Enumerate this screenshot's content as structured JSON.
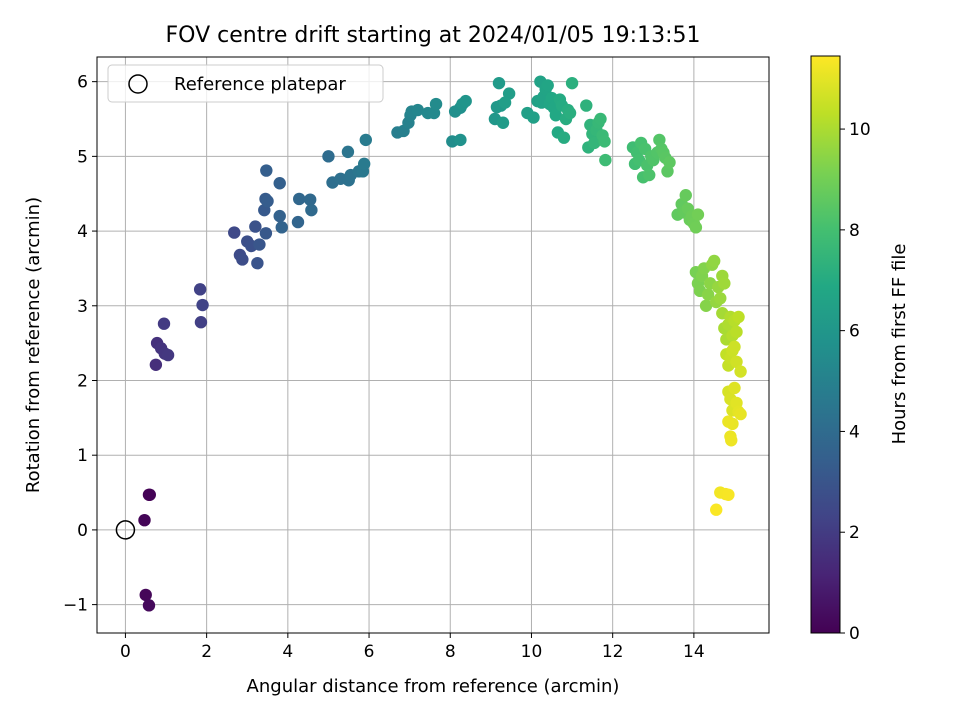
{
  "chart_data": {
    "type": "scatter",
    "title": "FOV centre drift starting at 2024/01/05 19:13:51",
    "xlabel": "Angular distance from reference (arcmin)",
    "ylabel": "Rotation from reference (arcmin)",
    "xlim": [
      -0.7,
      15.85
    ],
    "ylim": [
      -1.38,
      6.33
    ],
    "xticks": [
      0,
      2,
      4,
      6,
      8,
      10,
      12,
      14
    ],
    "yticks": [
      -1,
      0,
      1,
      2,
      3,
      4,
      5,
      6
    ],
    "grid": true,
    "legend": {
      "placement": "top-left",
      "entries": [
        "Reference platepar"
      ]
    },
    "reference_point": {
      "x": 0,
      "y": 0,
      "label": "Reference platepar"
    },
    "colorbar": {
      "label": "Hours from first FF file",
      "range": [
        0,
        11.45
      ],
      "ticks": [
        0,
        2,
        4,
        6,
        8,
        10
      ],
      "colormap": "viridis"
    },
    "series": [
      {
        "points": [
          [
            0.58,
            0.47,
            0.05
          ],
          [
            0.6,
            0.47,
            0.08
          ],
          [
            0.47,
            0.13,
            0.12
          ],
          [
            0.5,
            -0.87,
            0.18
          ],
          [
            0.58,
            -1.01,
            0.25
          ],
          [
            0.75,
            2.21,
            1.55
          ],
          [
            0.78,
            2.5,
            1.62
          ],
          [
            0.88,
            2.43,
            1.7
          ],
          [
            0.97,
            2.36,
            1.78
          ],
          [
            1.05,
            2.34,
            1.85
          ],
          [
            0.95,
            2.76,
            1.95
          ],
          [
            1.86,
            2.78,
            2.15
          ],
          [
            1.84,
            3.22,
            2.22
          ],
          [
            1.9,
            3.01,
            2.3
          ],
          [
            2.68,
            3.98,
            2.5
          ],
          [
            2.82,
            3.68,
            2.6
          ],
          [
            2.88,
            3.62,
            2.68
          ],
          [
            3.0,
            3.86,
            2.75
          ],
          [
            3.1,
            3.8,
            2.82
          ],
          [
            3.2,
            4.06,
            2.9
          ],
          [
            3.25,
            3.57,
            2.97
          ],
          [
            3.3,
            3.82,
            3.05
          ],
          [
            3.46,
            3.97,
            3.12
          ],
          [
            3.42,
            4.28,
            3.2
          ],
          [
            3.45,
            4.43,
            3.28
          ],
          [
            3.5,
            4.4,
            3.35
          ],
          [
            3.47,
            4.81,
            3.42
          ],
          [
            3.8,
            4.64,
            3.5
          ],
          [
            3.8,
            4.2,
            3.58
          ],
          [
            3.85,
            4.05,
            3.65
          ],
          [
            4.25,
            4.12,
            3.72
          ],
          [
            4.28,
            4.43,
            3.8
          ],
          [
            4.55,
            4.42,
            3.88
          ],
          [
            4.58,
            4.28,
            3.95
          ],
          [
            5.0,
            5.0,
            4.05
          ],
          [
            5.1,
            4.65,
            4.12
          ],
          [
            5.3,
            4.7,
            4.2
          ],
          [
            5.5,
            4.68,
            4.28
          ],
          [
            5.55,
            4.75,
            4.35
          ],
          [
            5.48,
            5.06,
            4.42
          ],
          [
            5.75,
            4.8,
            4.5
          ],
          [
            5.85,
            4.8,
            4.58
          ],
          [
            5.88,
            4.9,
            4.65
          ],
          [
            5.92,
            5.22,
            4.72
          ],
          [
            6.7,
            5.32,
            4.85
          ],
          [
            6.85,
            5.34,
            4.92
          ],
          [
            6.97,
            5.45,
            5.0
          ],
          [
            7.02,
            5.55,
            5.08
          ],
          [
            7.05,
            5.6,
            5.15
          ],
          [
            7.2,
            5.62,
            5.22
          ],
          [
            7.45,
            5.58,
            5.3
          ],
          [
            7.6,
            5.58,
            5.38
          ],
          [
            7.65,
            5.7,
            5.45
          ],
          [
            8.05,
            5.2,
            5.55
          ],
          [
            8.12,
            5.6,
            5.62
          ],
          [
            8.25,
            5.65,
            5.7
          ],
          [
            8.25,
            5.22,
            5.78
          ],
          [
            8.3,
            5.7,
            5.85
          ],
          [
            8.38,
            5.74,
            5.92
          ],
          [
            9.1,
            5.5,
            6.0
          ],
          [
            9.15,
            5.66,
            6.06
          ],
          [
            9.25,
            5.68,
            6.12
          ],
          [
            9.2,
            5.98,
            6.18
          ],
          [
            9.3,
            5.45,
            6.24
          ],
          [
            9.45,
            5.84,
            6.3
          ],
          [
            9.35,
            5.72,
            6.36
          ],
          [
            9.9,
            5.58,
            6.42
          ],
          [
            10.05,
            5.52,
            6.48
          ],
          [
            10.15,
            5.74,
            6.52
          ],
          [
            10.22,
            6.0,
            6.56
          ],
          [
            10.25,
            5.72,
            6.6
          ],
          [
            10.3,
            5.8,
            6.64
          ],
          [
            10.35,
            5.9,
            6.68
          ],
          [
            10.4,
            5.95,
            6.72
          ],
          [
            10.45,
            5.7,
            6.76
          ],
          [
            10.5,
            5.78,
            6.8
          ],
          [
            10.55,
            5.65,
            6.84
          ],
          [
            10.6,
            5.55,
            6.88
          ],
          [
            10.65,
            5.32,
            6.92
          ],
          [
            10.7,
            5.76,
            6.96
          ],
          [
            10.75,
            5.68,
            7.0
          ],
          [
            10.8,
            5.25,
            7.04
          ],
          [
            10.85,
            5.5,
            7.08
          ],
          [
            10.9,
            5.62,
            7.12
          ],
          [
            10.95,
            5.58,
            7.16
          ],
          [
            11.0,
            5.98,
            7.2
          ],
          [
            11.35,
            5.68,
            7.3
          ],
          [
            11.4,
            5.12,
            7.35
          ],
          [
            11.45,
            5.42,
            7.4
          ],
          [
            11.5,
            5.3,
            7.45
          ],
          [
            11.55,
            5.18,
            7.5
          ],
          [
            11.6,
            5.35,
            7.55
          ],
          [
            11.65,
            5.45,
            7.6
          ],
          [
            11.7,
            5.5,
            7.65
          ],
          [
            11.75,
            5.28,
            7.7
          ],
          [
            11.8,
            5.2,
            7.75
          ],
          [
            11.82,
            4.95,
            7.8
          ],
          [
            12.5,
            5.12,
            7.85
          ],
          [
            12.55,
            4.9,
            7.9
          ],
          [
            12.6,
            5.05,
            7.95
          ],
          [
            12.65,
            4.95,
            8.0
          ],
          [
            12.7,
            5.18,
            8.05
          ],
          [
            12.75,
            4.72,
            8.08
          ],
          [
            12.8,
            5.1,
            8.12
          ],
          [
            12.85,
            4.88,
            8.16
          ],
          [
            12.9,
            4.75,
            8.2
          ],
          [
            12.95,
            5.0,
            8.24
          ],
          [
            13.0,
            4.95,
            8.28
          ],
          [
            13.1,
            5.05,
            8.32
          ],
          [
            13.15,
            5.22,
            8.36
          ],
          [
            13.2,
            5.1,
            8.4
          ],
          [
            13.25,
            5.05,
            8.44
          ],
          [
            13.3,
            4.98,
            8.48
          ],
          [
            13.35,
            4.8,
            8.52
          ],
          [
            13.4,
            4.92,
            8.56
          ],
          [
            13.6,
            4.22,
            8.62
          ],
          [
            13.7,
            4.36,
            8.66
          ],
          [
            13.75,
            4.25,
            8.7
          ],
          [
            13.8,
            4.48,
            8.74
          ],
          [
            13.85,
            4.3,
            8.78
          ],
          [
            13.9,
            4.15,
            8.82
          ],
          [
            13.95,
            4.2,
            8.86
          ],
          [
            14.0,
            4.1,
            8.9
          ],
          [
            14.05,
            4.05,
            8.94
          ],
          [
            14.1,
            4.22,
            8.98
          ],
          [
            14.05,
            3.45,
            9.1
          ],
          [
            14.1,
            3.3,
            9.15
          ],
          [
            14.15,
            3.2,
            9.2
          ],
          [
            14.2,
            3.4,
            9.25
          ],
          [
            14.25,
            3.5,
            9.3
          ],
          [
            14.3,
            3.0,
            9.35
          ],
          [
            14.35,
            3.15,
            9.4
          ],
          [
            14.4,
            3.3,
            9.45
          ],
          [
            14.45,
            3.55,
            9.5
          ],
          [
            14.5,
            3.6,
            9.55
          ],
          [
            14.55,
            3.05,
            9.6
          ],
          [
            14.6,
            3.25,
            9.65
          ],
          [
            14.65,
            3.1,
            9.7
          ],
          [
            14.7,
            3.4,
            9.75
          ],
          [
            14.75,
            3.3,
            9.8
          ],
          [
            14.7,
            2.9,
            9.9
          ],
          [
            14.75,
            2.7,
            9.95
          ],
          [
            14.8,
            2.55,
            10.0
          ],
          [
            14.85,
            2.75,
            10.05
          ],
          [
            14.9,
            2.85,
            10.1
          ],
          [
            14.95,
            2.6,
            10.15
          ],
          [
            15.0,
            2.8,
            10.2
          ],
          [
            15.05,
            2.65,
            10.25
          ],
          [
            15.1,
            2.85,
            10.3
          ],
          [
            14.8,
            2.35,
            10.4
          ],
          [
            14.85,
            2.2,
            10.45
          ],
          [
            14.9,
            2.3,
            10.5
          ],
          [
            14.95,
            2.4,
            10.55
          ],
          [
            15.0,
            2.45,
            10.6
          ],
          [
            15.05,
            2.25,
            10.65
          ],
          [
            15.15,
            2.12,
            10.7
          ],
          [
            14.85,
            1.85,
            10.75
          ],
          [
            14.9,
            1.75,
            10.8
          ],
          [
            14.95,
            1.6,
            10.85
          ],
          [
            15.0,
            1.9,
            10.9
          ],
          [
            15.05,
            1.7,
            10.95
          ],
          [
            15.1,
            1.58,
            11.0
          ],
          [
            15.15,
            1.55,
            11.05
          ],
          [
            14.95,
            1.42,
            11.1
          ],
          [
            14.85,
            1.45,
            11.12
          ],
          [
            14.9,
            1.25,
            11.15
          ],
          [
            14.92,
            1.2,
            11.18
          ],
          [
            14.65,
            0.5,
            11.25
          ],
          [
            14.78,
            0.48,
            11.3
          ],
          [
            14.85,
            0.47,
            11.35
          ],
          [
            14.55,
            0.27,
            11.4
          ]
        ]
      }
    ]
  }
}
